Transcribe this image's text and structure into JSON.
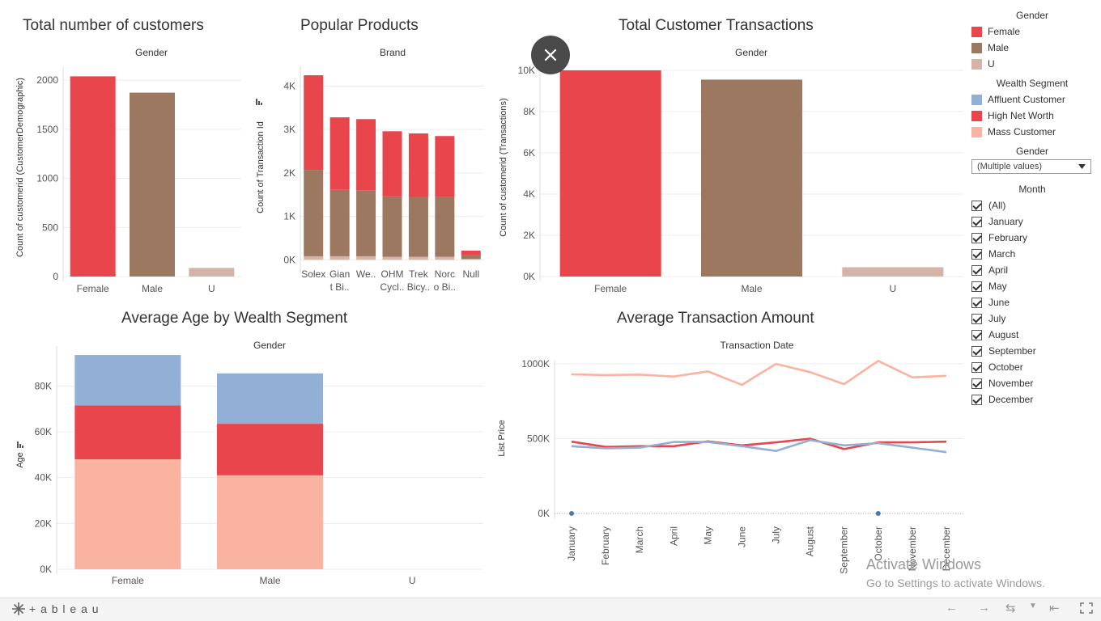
{
  "colors": {
    "female": "#E8454C",
    "male": "#9C7861",
    "u": "#D4B4A8",
    "affluent": "#92B0D6",
    "high_net_worth": "#E8454C",
    "mass": "#FAB3A0",
    "grid": "#ececec",
    "axis_text": "#555555"
  },
  "dashboard": {
    "title_customers": "Total number of customers",
    "title_products": "Popular Products",
    "title_transactions": "Total Customer Transactions",
    "title_age": "Average Age by Wealth Segment",
    "title_amount": "Average Transaction Amount"
  },
  "chart_data": [
    {
      "id": "customers",
      "type": "bar",
      "header": "Gender",
      "ylabel": "Count of customerid (CustomerDemographic)",
      "categories": [
        "Female",
        "Male",
        "U"
      ],
      "values": [
        2039,
        1873,
        88
      ],
      "ylim": [
        0,
        2100
      ],
      "yticks": [
        0,
        500,
        1000,
        1500,
        2000
      ],
      "ytick_labels": [
        "0",
        "500",
        "1000",
        "1500",
        "2000"
      ]
    },
    {
      "id": "products",
      "type": "bar",
      "header": "Brand",
      "ylabel": "Count of Transaction Id",
      "categories": [
        "Solex",
        "Giant Bi..",
        "We..",
        "OHM Cycl..",
        "Trek Bicy..",
        "Norco Bi..",
        "Null"
      ],
      "category_labels": [
        [
          "Solex"
        ],
        [
          "Gian",
          "t Bi.."
        ],
        [
          "We.."
        ],
        [
          "OHM",
          "Cycl.."
        ],
        [
          "Trek",
          "Bicy.."
        ],
        [
          "Norc",
          "o Bi.."
        ],
        [
          "Null"
        ]
      ],
      "series": [
        {
          "name": "U",
          "values": [
            80,
            80,
            80,
            70,
            70,
            70,
            20
          ]
        },
        {
          "name": "Male",
          "values": [
            1990,
            1530,
            1520,
            1390,
            1370,
            1380,
            80
          ]
        },
        {
          "name": "Female",
          "values": [
            2180,
            1670,
            1640,
            1500,
            1470,
            1400,
            110
          ]
        }
      ],
      "ylim": [
        -200,
        4400
      ],
      "yticks": [
        0,
        1000,
        2000,
        3000,
        4000
      ],
      "ytick_labels": [
        "0K",
        "1K",
        "2K",
        "3K",
        "4K"
      ]
    },
    {
      "id": "transactions",
      "type": "bar",
      "header": "Gender",
      "ylabel": "Count of customerid (Transactions)",
      "categories": [
        "Female",
        "Male",
        "U"
      ],
      "values": [
        10000,
        9550,
        450
      ],
      "ylim": [
        0,
        10000
      ],
      "yticks": [
        0,
        2000,
        4000,
        6000,
        8000,
        10000
      ],
      "ytick_labels": [
        "0K",
        "2K",
        "4K",
        "6K",
        "8K",
        "10K"
      ]
    },
    {
      "id": "age",
      "type": "bar",
      "header": "Gender",
      "ylabel": "Age",
      "categories": [
        "Female",
        "Male",
        "U"
      ],
      "series": [
        {
          "name": "Mass Customer",
          "values": [
            48000,
            41000,
            0
          ]
        },
        {
          "name": "High Net Worth",
          "values": [
            23500,
            22500,
            0
          ]
        },
        {
          "name": "Affluent Customer",
          "values": [
            22000,
            22000,
            0
          ]
        }
      ],
      "ylim": [
        0,
        96000
      ],
      "yticks": [
        0,
        20000,
        40000,
        60000,
        80000
      ],
      "ytick_labels": [
        "0K",
        "20K",
        "40K",
        "60K",
        "80K"
      ]
    },
    {
      "id": "amount",
      "type": "line",
      "header": "Transaction Date",
      "ylabel": "List Price",
      "categories": [
        "January",
        "February",
        "March",
        "April",
        "May",
        "June",
        "July",
        "August",
        "September",
        "October",
        "November",
        "December"
      ],
      "series": [
        {
          "name": "Mass Customer",
          "values": [
            930000,
            925000,
            928000,
            915000,
            950000,
            860000,
            1000000,
            945000,
            865000,
            1020000,
            910000,
            920000
          ]
        },
        {
          "name": "High Net Worth",
          "values": [
            480000,
            445000,
            450000,
            450000,
            482000,
            455000,
            475000,
            500000,
            430000,
            475000,
            475000,
            480000
          ]
        },
        {
          "name": "Affluent Customer",
          "values": [
            450000,
            435000,
            440000,
            478000,
            478000,
            450000,
            418000,
            490000,
            455000,
            470000,
            440000,
            410000
          ]
        }
      ],
      "points": [
        {
          "month": "January",
          "value": 0
        },
        {
          "month": "October",
          "value": 0
        }
      ],
      "ylim": [
        0,
        1000000
      ],
      "yticks": [
        0,
        500000,
        1000000
      ],
      "ytick_labels": [
        "0K",
        "500K",
        "1000K"
      ]
    }
  ],
  "legend": {
    "gender_title": "Gender",
    "gender_items": [
      {
        "label": "Female",
        "color": "#E8454C"
      },
      {
        "label": "Male",
        "color": "#9C7861"
      },
      {
        "label": "U",
        "color": "#D4B4A8"
      }
    ],
    "wealth_title": "Wealth Segment",
    "wealth_items": [
      {
        "label": "Affluent Customer",
        "color": "#92B0D6"
      },
      {
        "label": "High Net Worth",
        "color": "#E8454C"
      },
      {
        "label": "Mass Customer",
        "color": "#FAB3A0"
      }
    ]
  },
  "filters": {
    "gender_title": "Gender",
    "gender_value": "(Multiple values)",
    "month_title": "Month",
    "months": [
      "(All)",
      "January",
      "February",
      "March",
      "April",
      "May",
      "June",
      "July",
      "August",
      "September",
      "October",
      "November",
      "December"
    ]
  },
  "watermark": {
    "line1": "Activate Windows",
    "line2": "Go to Settings to activate Windows."
  },
  "footer": {
    "logo": "+ a b l e a u"
  }
}
